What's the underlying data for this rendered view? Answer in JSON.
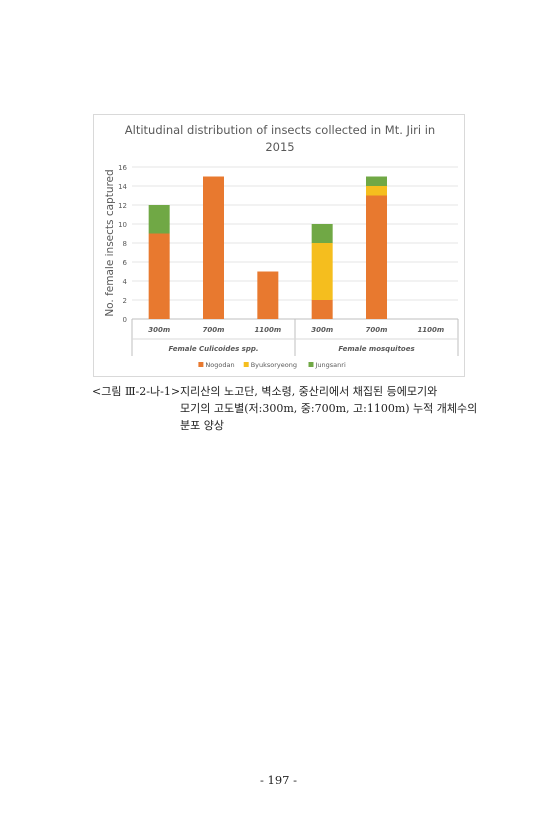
{
  "chart_data": {
    "type": "bar",
    "stacked": true,
    "title_line1": "Altitudinal distribution of insects collected in Mt. Jiri in",
    "title_line2": "2015",
    "ylabel": "No. female insects captured",
    "ylim": [
      0,
      16
    ],
    "yticks": [
      "0",
      "2",
      "4",
      "6",
      "8",
      "10",
      "12",
      "14",
      "16"
    ],
    "grid": true,
    "legend_position": "bottom",
    "groups": [
      "Female Culicoides spp.",
      "Female mosquitoes"
    ],
    "categories": [
      "300m",
      "700m",
      "1100m",
      "300m",
      "700m",
      "1100m"
    ],
    "series": [
      {
        "name": "Nogodan",
        "color": "#e8792f",
        "values": [
          9,
          15,
          5,
          2,
          13,
          0
        ]
      },
      {
        "name": "Byuksoryeong",
        "color": "#f5be1e",
        "values": [
          0,
          0,
          0,
          6,
          1,
          0
        ]
      },
      {
        "name": "Jungsanri",
        "color": "#70a845",
        "values": [
          3,
          0,
          0,
          2,
          1,
          0
        ]
      }
    ]
  },
  "caption": {
    "label": "<그림 Ⅲ-2-나-1>",
    "line1": "지리산의 노고단, 벽소령, 중산리에서 채집된 등에모기와",
    "line2": "모기의 고도별(저:300m, 중:700m, 고:1100m) 누적 개체수의",
    "line3": "분포 양상"
  },
  "page_number": "- 197 -"
}
